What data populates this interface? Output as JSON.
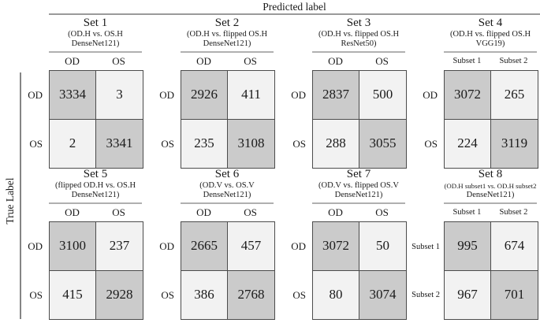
{
  "figure": {
    "predicted_axis_label": "Predicted label",
    "true_axis_label": "True Label"
  },
  "colors": {
    "diagonal_cell": "#cbcbcb",
    "off_diagonal_cell": "#f2f2f2",
    "matrix_border": "#4c4c4c",
    "rule_line": "#9a9a9a",
    "header_underline": "#b0b0b0"
  },
  "chart_data": [
    {
      "type": "heatmap",
      "title": "Set 1",
      "subtitle1": "(OD.H vs. OS.H",
      "subtitle2": "DenseNet121)",
      "xlabel": "Predicted label",
      "ylabel": "True Label",
      "col_labels": [
        "OD",
        "OS"
      ],
      "row_labels": [
        "OD",
        "OS"
      ],
      "values": [
        [
          3334,
          3
        ],
        [
          2,
          3341
        ]
      ]
    },
    {
      "type": "heatmap",
      "title": "Set 2",
      "subtitle1": "(OD.H vs. flipped OS.H",
      "subtitle2": "DenseNet121)",
      "xlabel": "Predicted label",
      "ylabel": "True Label",
      "col_labels": [
        "OD",
        "OS"
      ],
      "row_labels": [
        "OD",
        "OS"
      ],
      "values": [
        [
          2926,
          411
        ],
        [
          235,
          3108
        ]
      ]
    },
    {
      "type": "heatmap",
      "title": "Set 3",
      "subtitle1": "(OD.H vs. flipped OS.H",
      "subtitle2": "ResNet50)",
      "xlabel": "Predicted label",
      "ylabel": "True Label",
      "col_labels": [
        "OD",
        "OS"
      ],
      "row_labels": [
        "OD",
        "OS"
      ],
      "values": [
        [
          2837,
          500
        ],
        [
          288,
          3055
        ]
      ]
    },
    {
      "type": "heatmap",
      "title": "Set 4",
      "subtitle1": "(OD.H vs. flipped OS.H",
      "subtitle2": "VGG19)",
      "xlabel": "Predicted label",
      "ylabel": "True Label",
      "col_labels": [
        "Subset 1",
        "Subset 2"
      ],
      "row_labels": [
        "OD",
        "OS"
      ],
      "values": [
        [
          3072,
          265
        ],
        [
          224,
          3119
        ]
      ]
    },
    {
      "type": "heatmap",
      "title": "Set 5",
      "subtitle1": "(flipped OD.H vs. OS.H",
      "subtitle2": "DenseNet121)",
      "xlabel": "Predicted label",
      "ylabel": "True Label",
      "col_labels": [
        "OD",
        "OS"
      ],
      "row_labels": [
        "OD",
        "OS"
      ],
      "values": [
        [
          3100,
          237
        ],
        [
          415,
          2928
        ]
      ]
    },
    {
      "type": "heatmap",
      "title": "Set 6",
      "subtitle1": "(OD.V vs. OS.V",
      "subtitle2": "DenseNet121)",
      "xlabel": "Predicted label",
      "ylabel": "True Label",
      "col_labels": [
        "OD",
        "OS"
      ],
      "row_labels": [
        "OD",
        "OS"
      ],
      "values": [
        [
          2665,
          457
        ],
        [
          386,
          2768
        ]
      ]
    },
    {
      "type": "heatmap",
      "title": "Set 7",
      "subtitle1": "(OD.V vs. flipped OS.V",
      "subtitle2": "DenseNet121)",
      "xlabel": "Predicted label",
      "ylabel": "True Label",
      "col_labels": [
        "OD",
        "OS"
      ],
      "row_labels": [
        "OD",
        "OS"
      ],
      "values": [
        [
          3072,
          50
        ],
        [
          80,
          3074
        ]
      ]
    },
    {
      "type": "heatmap",
      "title": "Set 8",
      "subtitle1": "(OD.H subset1 vs. OD.H subset2",
      "subtitle2": "DenseNet121)",
      "xlabel": "Predicted label",
      "ylabel": "True Label",
      "col_labels": [
        "Subset 1",
        "Subset 2"
      ],
      "row_labels": [
        "Subset 1",
        "Subset 2"
      ],
      "values": [
        [
          995,
          674
        ],
        [
          967,
          701
        ]
      ]
    }
  ]
}
